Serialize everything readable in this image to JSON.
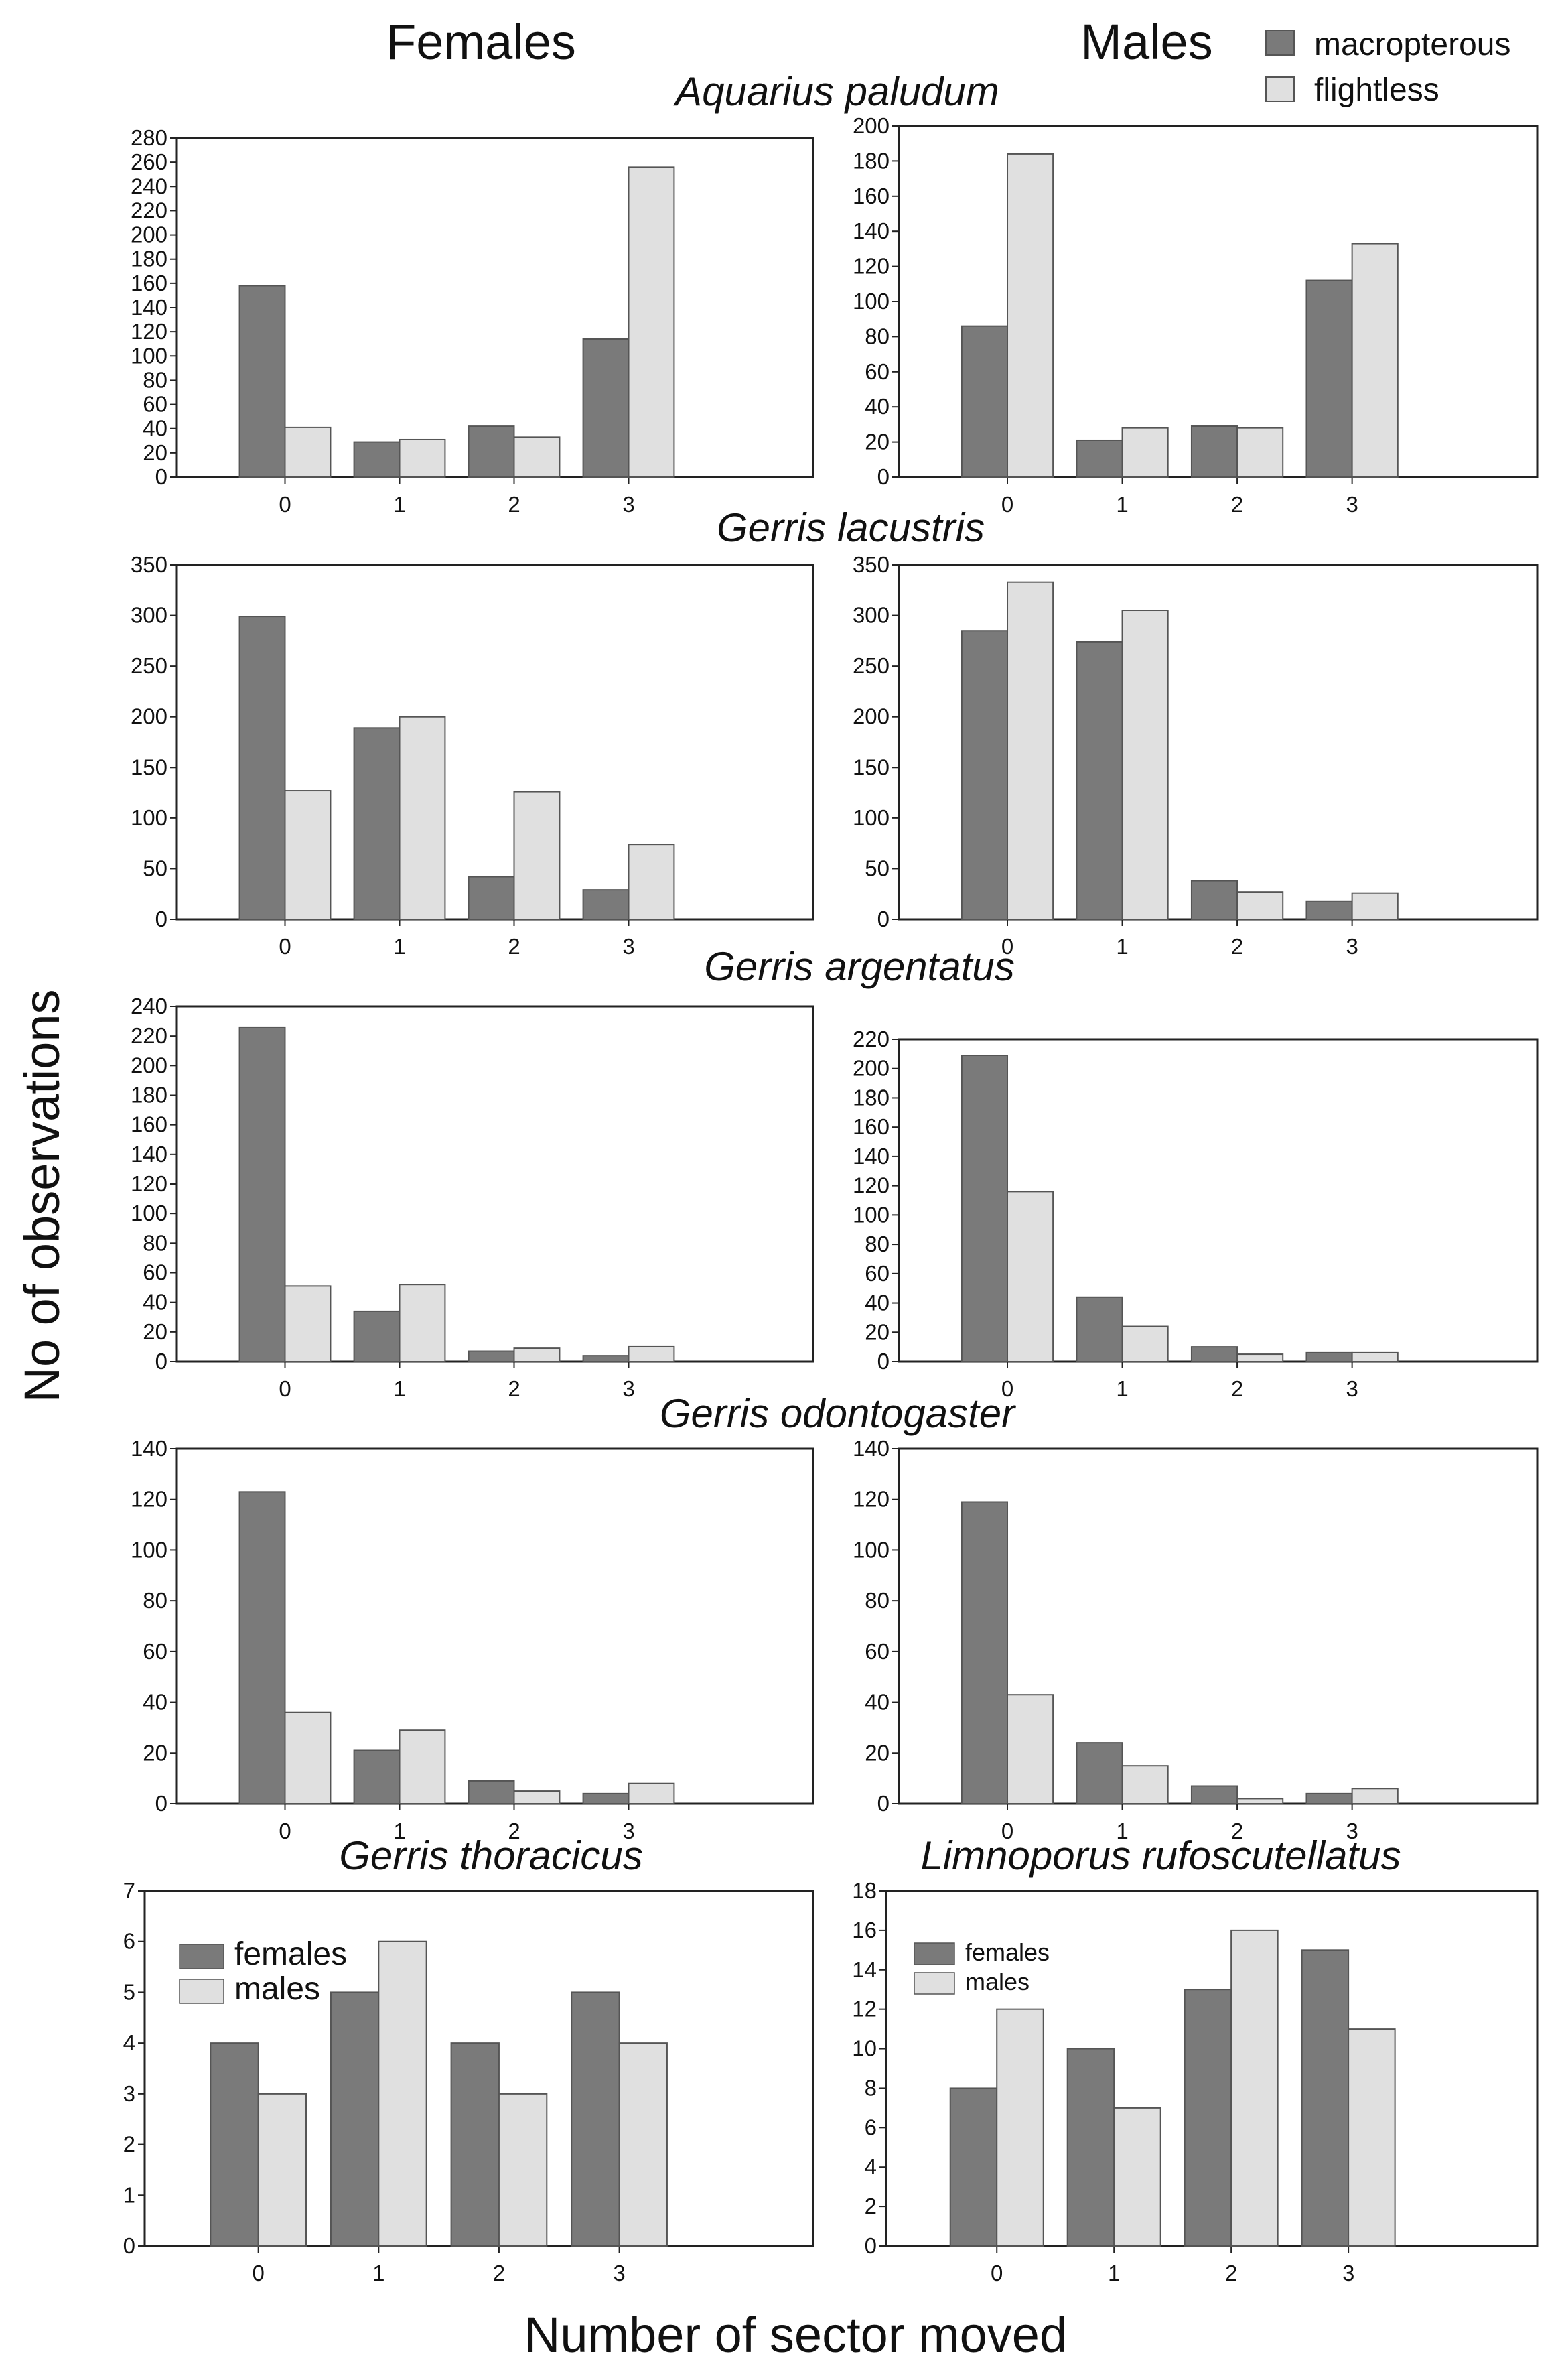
{
  "column_titles": {
    "left": "Females",
    "right": "Males"
  },
  "ylabel": "No of observations",
  "xlabel": "Number of sector moved",
  "legend": {
    "macropterous": "macropterous",
    "flightless": "flightless"
  },
  "colors": {
    "dark": "#7a7a7a",
    "light": "#e0e0e0",
    "stroke": "#555555"
  },
  "chart_data": [
    {
      "type": "bar",
      "species": "Aquarius paludum",
      "panel": "females",
      "categories": [
        "0",
        "1",
        "2",
        "3"
      ],
      "series": [
        {
          "name": "macropterous",
          "values": [
            158,
            29,
            42,
            114
          ]
        },
        {
          "name": "flightless",
          "values": [
            41,
            31,
            33,
            256
          ]
        }
      ],
      "ylim": [
        0,
        280
      ],
      "yticks": [
        0,
        20,
        40,
        60,
        80,
        100,
        120,
        140,
        160,
        180,
        200,
        220,
        240,
        260,
        280
      ]
    },
    {
      "type": "bar",
      "species": "Aquarius paludum",
      "panel": "males",
      "categories": [
        "0",
        "1",
        "2",
        "3"
      ],
      "series": [
        {
          "name": "macropterous",
          "values": [
            86,
            21,
            29,
            112
          ]
        },
        {
          "name": "flightless",
          "values": [
            184,
            28,
            28,
            133
          ]
        }
      ],
      "ylim": [
        0,
        200
      ],
      "yticks": [
        0,
        20,
        40,
        60,
        80,
        100,
        120,
        140,
        160,
        180,
        200
      ]
    },
    {
      "type": "bar",
      "species": "Gerris lacustris",
      "panel": "females",
      "categories": [
        "0",
        "1",
        "2",
        "3"
      ],
      "series": [
        {
          "name": "macropterous",
          "values": [
            299,
            189,
            42,
            29
          ]
        },
        {
          "name": "flightless",
          "values": [
            127,
            200,
            126,
            74
          ]
        }
      ],
      "ylim": [
        0,
        350
      ],
      "yticks": [
        0,
        50,
        100,
        150,
        200,
        250,
        300,
        350
      ]
    },
    {
      "type": "bar",
      "species": "Gerris lacustris",
      "panel": "males",
      "categories": [
        "0",
        "1",
        "2",
        "3"
      ],
      "series": [
        {
          "name": "macropterous",
          "values": [
            285,
            274,
            38,
            18
          ]
        },
        {
          "name": "flightless",
          "values": [
            333,
            305,
            27,
            26
          ]
        }
      ],
      "ylim": [
        0,
        350
      ],
      "yticks": [
        0,
        50,
        100,
        150,
        200,
        250,
        300,
        350
      ]
    },
    {
      "type": "bar",
      "species": "Gerris argentatus",
      "panel": "females",
      "categories": [
        "0",
        "1",
        "2",
        "3"
      ],
      "series": [
        {
          "name": "macropterous",
          "values": [
            226,
            34,
            7,
            4
          ]
        },
        {
          "name": "flightless",
          "values": [
            51,
            52,
            9,
            10
          ]
        }
      ],
      "ylim": [
        0,
        240
      ],
      "yticks": [
        0,
        20,
        40,
        60,
        80,
        100,
        120,
        140,
        160,
        180,
        200,
        220,
        240
      ]
    },
    {
      "type": "bar",
      "species": "Gerris argentatus",
      "panel": "males",
      "categories": [
        "0",
        "1",
        "2",
        "3"
      ],
      "series": [
        {
          "name": "macropterous",
          "values": [
            209,
            44,
            10,
            6
          ]
        },
        {
          "name": "flightless",
          "values": [
            116,
            24,
            5,
            6
          ]
        }
      ],
      "ylim": [
        0,
        220
      ],
      "yticks": [
        0,
        20,
        40,
        60,
        80,
        100,
        120,
        140,
        160,
        180,
        200,
        220
      ]
    },
    {
      "type": "bar",
      "species": "Gerris odontogaster",
      "panel": "females",
      "categories": [
        "0",
        "1",
        "2",
        "3"
      ],
      "series": [
        {
          "name": "macropterous",
          "values": [
            123,
            21,
            9,
            4
          ]
        },
        {
          "name": "flightless",
          "values": [
            36,
            29,
            5,
            8
          ]
        }
      ],
      "ylim": [
        0,
        140
      ],
      "yticks": [
        0,
        20,
        40,
        60,
        80,
        100,
        120,
        140
      ]
    },
    {
      "type": "bar",
      "species": "Gerris odontogaster",
      "panel": "males",
      "categories": [
        "0",
        "1",
        "2",
        "3"
      ],
      "series": [
        {
          "name": "macropterous",
          "values": [
            119,
            24,
            7,
            4
          ]
        },
        {
          "name": "flightless",
          "values": [
            43,
            15,
            2,
            6
          ]
        }
      ],
      "ylim": [
        0,
        140
      ],
      "yticks": [
        0,
        20,
        40,
        60,
        80,
        100,
        120,
        140
      ]
    },
    {
      "type": "bar",
      "species": "Gerris thoracicus",
      "panel": "both",
      "categories": [
        "0",
        "1",
        "2",
        "3"
      ],
      "series": [
        {
          "name": "females",
          "values": [
            4,
            5,
            4,
            5
          ]
        },
        {
          "name": "males",
          "values": [
            3,
            6,
            3,
            4
          ]
        }
      ],
      "ylim": [
        0,
        7
      ],
      "yticks": [
        0,
        1,
        2,
        3,
        4,
        5,
        6,
        7
      ],
      "legend": [
        "females",
        "males"
      ]
    },
    {
      "type": "bar",
      "species": "Limnoporus rufoscutellatus",
      "panel": "both",
      "categories": [
        "0",
        "1",
        "2",
        "3"
      ],
      "series": [
        {
          "name": "females",
          "values": [
            8,
            10,
            13,
            15
          ]
        },
        {
          "name": "males",
          "values": [
            12,
            7,
            16,
            11
          ]
        }
      ],
      "ylim": [
        0,
        18
      ],
      "yticks": [
        0,
        2,
        4,
        6,
        8,
        10,
        12,
        14,
        16,
        18
      ],
      "legend": [
        "females",
        "males"
      ]
    }
  ]
}
